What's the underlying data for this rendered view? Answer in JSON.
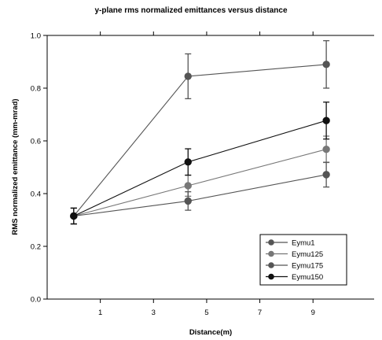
{
  "chart_data": {
    "type": "line",
    "title": "y-plane rms normalized emittances versus distance",
    "xlabel": "Distance(m)",
    "ylabel": "RMS normalized emittance (mm-mrad)",
    "xlim": [
      -1,
      11.3
    ],
    "ylim": [
      0,
      1.0
    ],
    "x_ticks": [
      1,
      3,
      5,
      7,
      9
    ],
    "y_ticks": [
      0.0,
      0.2,
      0.4,
      0.6,
      0.8,
      1.0
    ],
    "y_tick_labels": [
      "0.0",
      "0.2",
      "0.4",
      "0.6",
      "0.8",
      "1.0"
    ],
    "grid": false,
    "legend_position": "bottom-right",
    "series": [
      {
        "name": "Eymu1",
        "color": "#555555",
        "x": [
          0.0,
          4.3,
          9.5
        ],
        "y": [
          0.315,
          0.845,
          0.89
        ],
        "err": [
          0.03,
          0.085,
          0.09
        ]
      },
      {
        "name": "Eymu125",
        "color": "#777777",
        "x": [
          0.0,
          4.3,
          9.5
        ],
        "y": [
          0.315,
          0.43,
          0.568
        ],
        "err": [
          0.03,
          0.04,
          0.05
        ]
      },
      {
        "name": "Eymu175",
        "color": "#555555",
        "x": [
          0.0,
          4.3,
          9.5
        ],
        "y": [
          0.315,
          0.372,
          0.472
        ],
        "err": [
          0.03,
          0.035,
          0.047
        ]
      },
      {
        "name": "Eymu150",
        "color": "#111111",
        "x": [
          0.0,
          4.3,
          9.5
        ],
        "y": [
          0.315,
          0.52,
          0.677
        ],
        "err": [
          0.03,
          0.05,
          0.07
        ]
      }
    ]
  }
}
